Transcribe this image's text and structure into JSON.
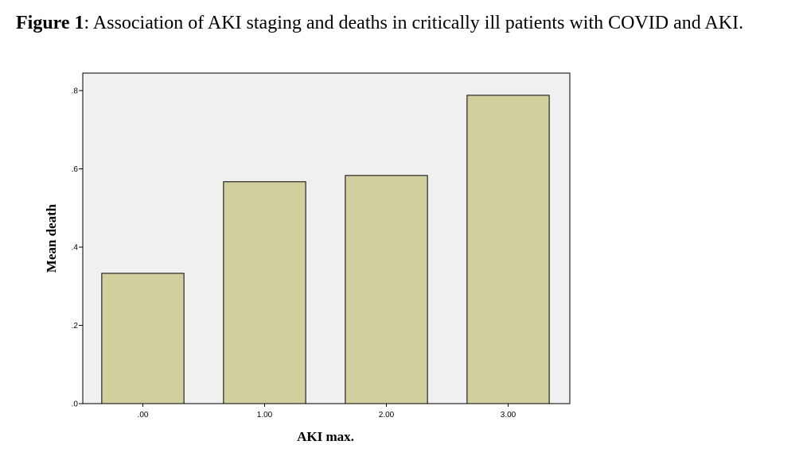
{
  "caption": {
    "label": "Figure 1",
    "text": ": Association of AKI staging and deaths in critically ill patients with COVID and AKI."
  },
  "colors": {
    "plot_background": "#f0f0f0",
    "bar_fill": "#d2cf9e",
    "bar_stroke": "#000000"
  },
  "chart_data": {
    "type": "bar",
    "categories": [
      ".00",
      "1.00",
      "2.00",
      "3.00"
    ],
    "values": [
      0.333,
      0.567,
      0.583,
      0.788
    ],
    "xlabel": "AKI max.",
    "ylabel": "Mean death",
    "ylim": [
      0,
      0.8
    ],
    "yticks": [
      0,
      0.2,
      0.4,
      0.6,
      0.8
    ],
    "ytick_labels": [
      ".0",
      ".2",
      ".4",
      ".6",
      ".8"
    ],
    "grid": false
  }
}
